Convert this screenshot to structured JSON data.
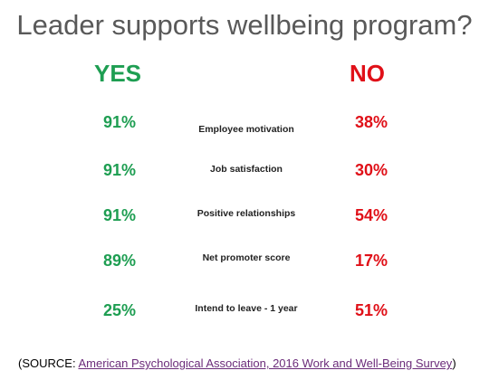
{
  "title": "Leader supports wellbeing program?",
  "columns": {
    "yes": "YES",
    "no": "NO"
  },
  "rows": [
    {
      "yes": "91%",
      "label": "Employee motivation",
      "no": "38%"
    },
    {
      "yes": "91%",
      "label": "Job satisfaction",
      "no": "30%"
    },
    {
      "yes": "91%",
      "label": "Positive relationships",
      "no": "54%"
    },
    {
      "yes": "89%",
      "label": "Net promoter score",
      "no": "17%"
    },
    {
      "yes": "25%",
      "label": "Intend to leave - 1 year",
      "no": "51%"
    }
  ],
  "source": {
    "prefix": "(SOURCE:",
    "link": "American Psychological Association, 2016 Work and Well-Being Survey",
    "suffix": ")"
  }
}
